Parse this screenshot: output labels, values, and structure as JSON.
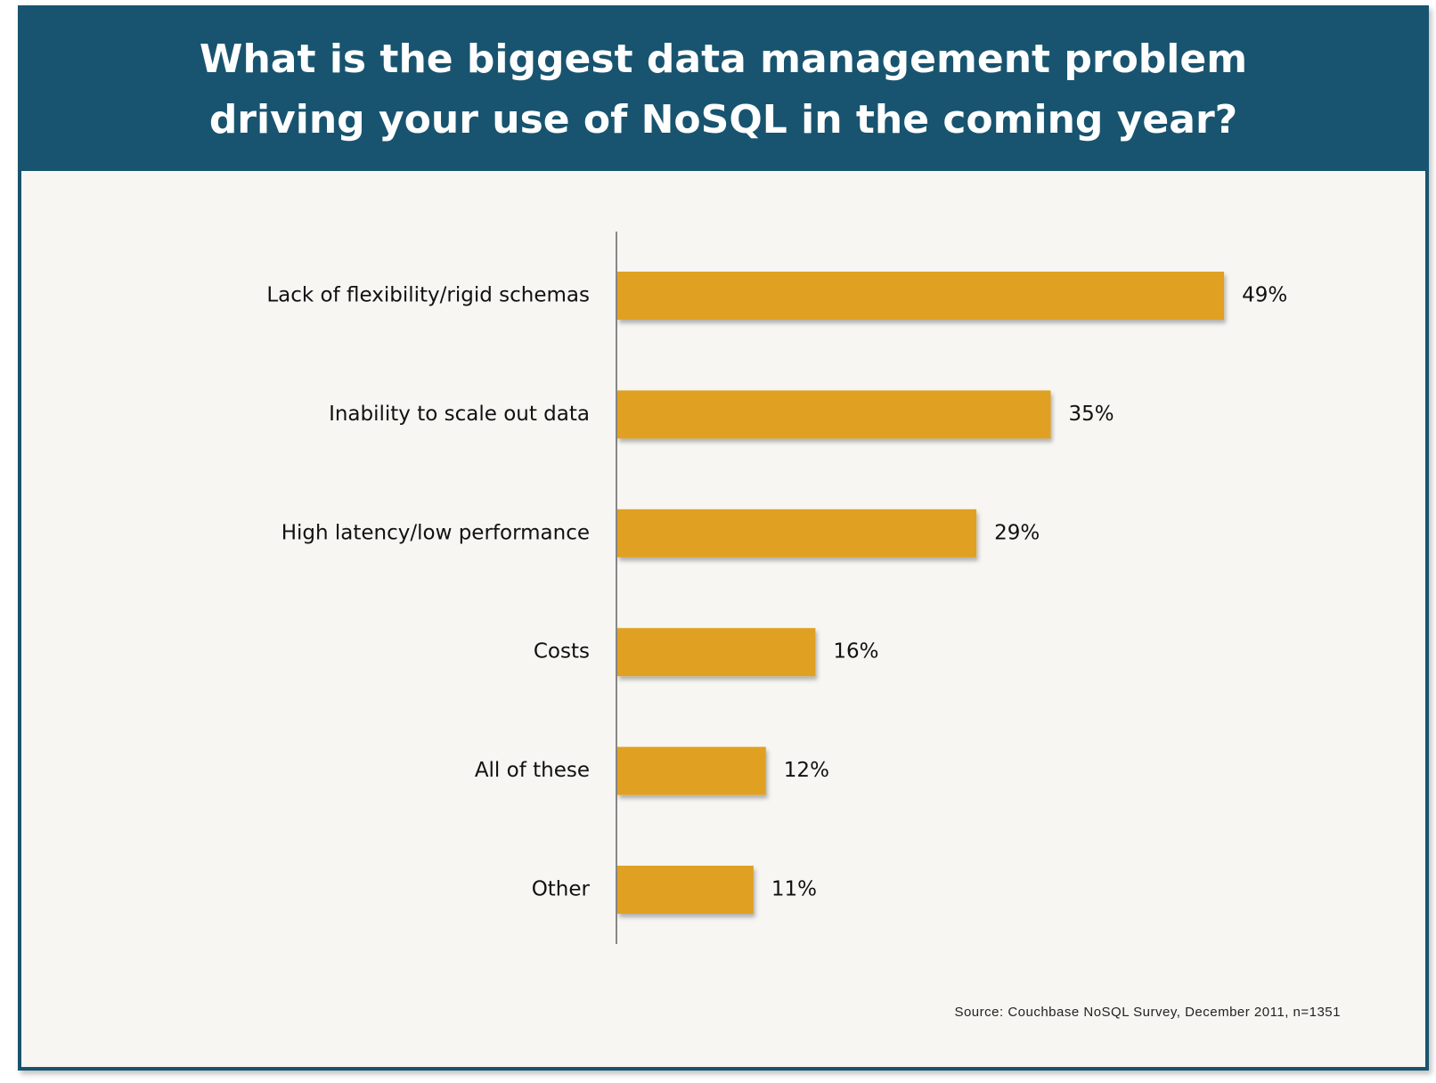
{
  "chart_data": {
    "type": "bar",
    "orientation": "horizontal",
    "title": "What is the biggest data management problem driving your use of NoSQL in the coming year?",
    "categories": [
      "Lack of flexibility/rigid schemas",
      "Inability to scale out data",
      "High latency/low performance",
      "Costs",
      "All of these",
      "Other"
    ],
    "values": [
      49,
      35,
      29,
      16,
      12,
      11
    ],
    "value_labels": [
      "49%",
      "35%",
      "29%",
      "16%",
      "12%",
      "11%"
    ],
    "unit": "%",
    "grid": false,
    "legend": "none",
    "colors": {
      "bar": "#e0a120",
      "header": "#18546f",
      "background": "#f7f6f2",
      "axis": "#888888"
    },
    "source": "Source: Couchbase NoSQL Survey, December 2011, n=1351"
  }
}
